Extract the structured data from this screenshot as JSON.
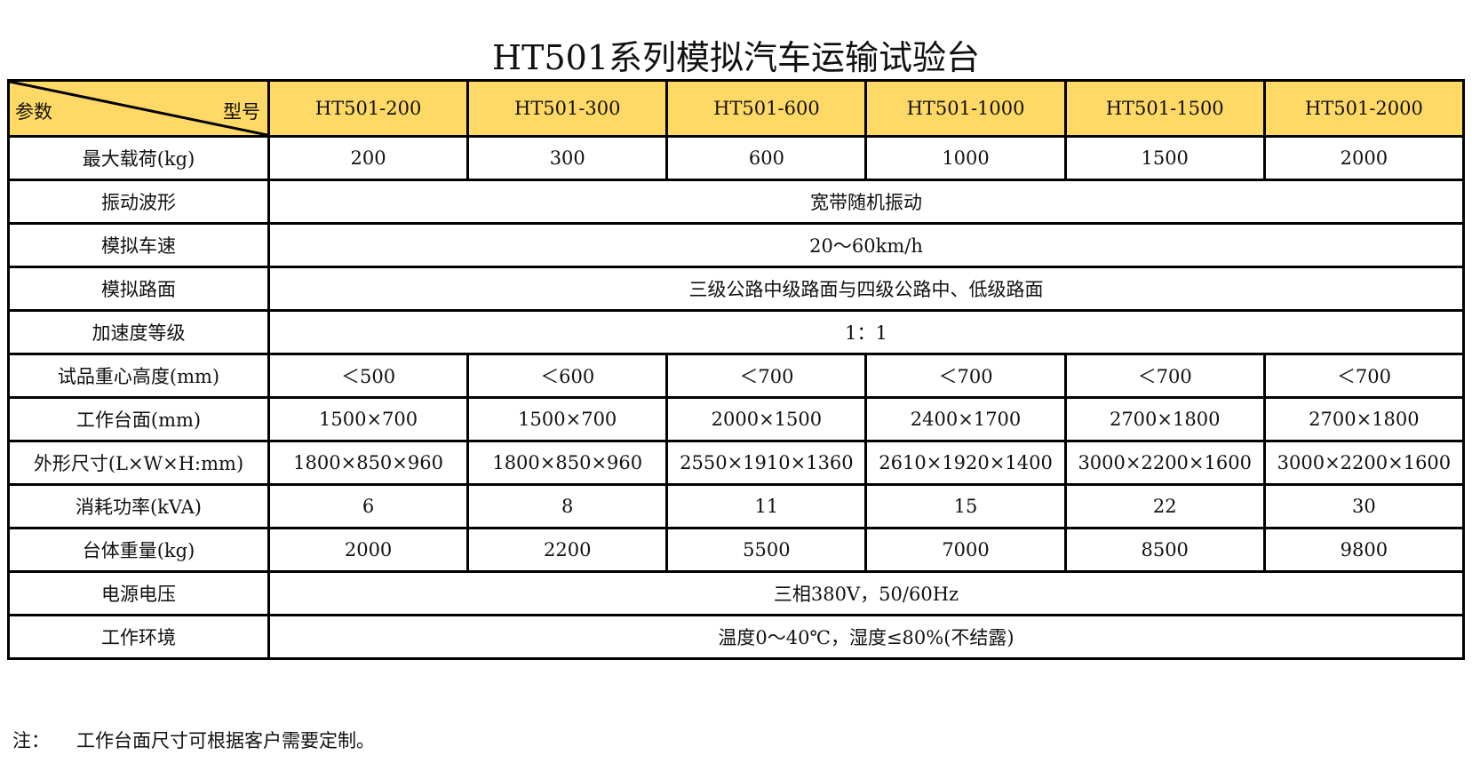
{
  "title": "HT501系列模拟汽车运输试验台",
  "header": {
    "param_label": "参数",
    "model_label": "型号",
    "models": [
      "HT501-200",
      "HT501-300",
      "HT501-600",
      "HT501-1000",
      "HT501-1500",
      "HT501-2000"
    ],
    "fill_color": "#FFD966"
  },
  "rows": [
    {
      "label": "最大载荷(kg)",
      "values": [
        "200",
        "300",
        "600",
        "1000",
        "1500",
        "2000"
      ]
    },
    {
      "label": "振动波形",
      "merged": "宽带随机振动"
    },
    {
      "label": "模拟车速",
      "merged": "20～60km/h"
    },
    {
      "label": "模拟路面",
      "merged": "三级公路中级路面与四级公路中、低级路面"
    },
    {
      "label": "加速度等级",
      "merged": "1：1"
    },
    {
      "label": "试品重心高度(mm)",
      "values": [
        "＜500",
        "＜600",
        "＜700",
        "＜700",
        "＜700",
        "＜700"
      ]
    },
    {
      "label": "工作台面(mm)",
      "values": [
        "1500×700",
        "1500×700",
        "2000×1500",
        "2400×1700",
        "2700×1800",
        "2700×1800"
      ]
    },
    {
      "label": "外形尺寸(L×W×H:mm)",
      "values": [
        "1800×850×960",
        "1800×850×960",
        "2550×1910×1360",
        "2610×1920×1400",
        "3000×2200×1600",
        "3000×2200×1600"
      ]
    },
    {
      "label": "消耗功率(kVA)",
      "values": [
        "6",
        "8",
        "11",
        "15",
        "22",
        "30"
      ]
    },
    {
      "label": "台体重量(kg)",
      "values": [
        "2000",
        "2200",
        "5500",
        "7000",
        "8500",
        "9800"
      ]
    },
    {
      "label": "电源电压",
      "merged": "三相380V，50/60Hz"
    },
    {
      "label": "工作环境",
      "merged": "温度0～40℃，湿度≤80%(不结露)"
    }
  ],
  "note": {
    "prefix": "注：",
    "text": "工作台面尺寸可根据客户需要定制。"
  }
}
